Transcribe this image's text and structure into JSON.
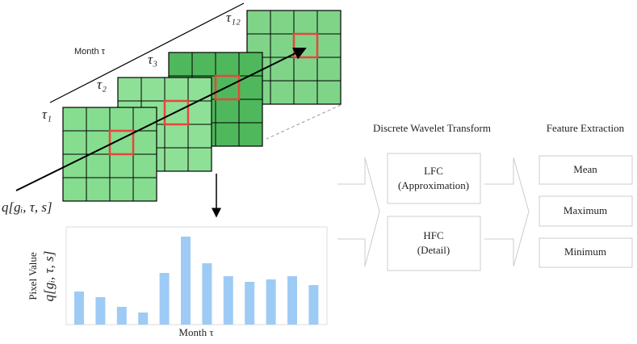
{
  "stack": {
    "axis_label": "Month τ",
    "layers": [
      "τ₁",
      "τ₂",
      "τ₃",
      "τ₁₂"
    ],
    "pixel_label": "q[gᵢ, τ, s]"
  },
  "dwt": {
    "title": "Discrete Wavelet Transform",
    "boxes": [
      [
        "LFC",
        "(Approximation)"
      ],
      [
        "HFC",
        "(Detail)"
      ]
    ]
  },
  "features": {
    "title": "Feature Extraction",
    "boxes": [
      "Mean",
      "Maximum",
      "Minimum"
    ]
  },
  "chart_data": {
    "type": "bar",
    "y_label": "Pixel Value",
    "y_label_math": "q[gᵢ, τ, s]",
    "x_label": "Month τ",
    "values": [
      41,
      34,
      22,
      15,
      64,
      109,
      76,
      60,
      53,
      56,
      60,
      49
    ],
    "color": "#9ecbf5"
  }
}
